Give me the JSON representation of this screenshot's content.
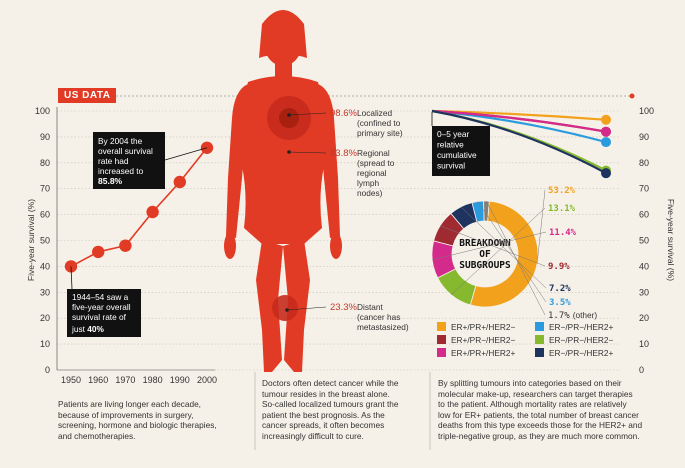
{
  "section_label": "US DATA",
  "colors": {
    "accent": "#e23b25",
    "dark": "#111111",
    "grid": "#c8c2b8"
  },
  "left_axis": {
    "ylabel": "Five-year survival (%)",
    "ticks": [
      "0",
      "10",
      "20",
      "30",
      "40",
      "50",
      "60",
      "70",
      "80",
      "90",
      "100"
    ]
  },
  "right_axis": {
    "ylabel": "Five-year survival (%)",
    "ticks": [
      "0",
      "10",
      "20",
      "30",
      "40",
      "50",
      "60",
      "70",
      "80",
      "90",
      "100"
    ]
  },
  "annotations": {
    "top_lines": [
      "By 2004 the",
      "overall survival",
      "rate had",
      "increased to"
    ],
    "top_value": "85.8%",
    "bottom_lines": [
      "1944–54 saw a",
      "five-year overall",
      "survival rate of"
    ],
    "bottom_prefix": "just ",
    "bottom_value": "40%"
  },
  "body_stages": [
    {
      "value": "98.6%",
      "lines": [
        "Localized",
        "(confined to",
        "primary site)"
      ]
    },
    {
      "value": "83.8%",
      "lines": [
        "Regional",
        "(spread to",
        "regional",
        "lymph",
        "nodes)"
      ]
    },
    {
      "value": "23.3%",
      "lines": [
        "Distant",
        "(cancer has",
        "metastasized)"
      ]
    }
  ],
  "survival_label": [
    "0–5 year",
    "relative",
    "cumulative",
    "survival"
  ],
  "donut_center": [
    "BREAKDOWN",
    "OF",
    "SUBGROUPS"
  ],
  "captions": {
    "left": [
      "Patients are living longer each decade,",
      "because of improvements in surgery,",
      "screening, hormone and biologic therapies,",
      "and chemotherapies."
    ],
    "middle": [
      "Doctors often detect cancer while the",
      "tumour resides in the breast alone.",
      "So-called localized tumours grant the",
      "patient the best prognosis. As the",
      "cancer spreads, it often becomes",
      "increasingly difficult to cure."
    ],
    "right": [
      "By splitting tumours into categories based on their",
      "molecular make-up, researchers can target therapies",
      "to the patient. Although mortality rates are relatively",
      "low for ER+ patients, the total number of breast cancer",
      "deaths from this type exceeds those for the HER2+ and",
      "triple-negative group, as they are much more common."
    ]
  },
  "chart_data": [
    {
      "type": "line",
      "x": [
        1950,
        1960,
        1970,
        1980,
        1990,
        2000
      ],
      "y": [
        40,
        45.6,
        48,
        61,
        72.6,
        85.8
      ],
      "xlabel": "",
      "ylabel": "Five-year survival (%)",
      "ylim": [
        0,
        100
      ],
      "grid": true,
      "color": "#e23b25"
    },
    {
      "type": "line",
      "series": [
        {
          "name": "ER+/PR+/HER2−",
          "color": "#f2a11c",
          "values": [
            100,
            96.6
          ]
        },
        {
          "name": "ER−/PR−/HER2+",
          "color": "#2b9be0",
          "values": [
            100,
            88
          ]
        },
        {
          "name": "ER+/PR−/HER2−",
          "color": "#a02a32",
          "values": [
            100,
            92
          ]
        },
        {
          "name": "ER+/PR+/HER2+",
          "color": "#d42a8c",
          "values": [
            100,
            92
          ]
        },
        {
          "name": "ER−/PR−/HER2−",
          "color": "#86b92d",
          "values": [
            100,
            77
          ]
        },
        {
          "name": "ER−/PR−/HER2+",
          "color": "#1e3360",
          "values": [
            100,
            76
          ]
        }
      ],
      "ylim": [
        0,
        100
      ]
    },
    {
      "type": "pie",
      "labels": [
        "ER+/PR+/HER2−",
        "ER−/PR−/HER2−",
        "ER+/PR+/HER2+",
        "ER+/PR−/HER2−",
        "ER−/PR−/HER2+",
        "ER−/PR−/HER2+",
        "other"
      ],
      "values": [
        53.2,
        13.1,
        11.4,
        9.9,
        7.2,
        3.5,
        1.7
      ],
      "value_labels": [
        "53.2%",
        "13.1%",
        "11.4%",
        "9.9%",
        "7.2%",
        "3.5%",
        "1.7% (other)"
      ],
      "colors": [
        "#f2a11c",
        "#86b92d",
        "#d42a8c",
        "#a02a32",
        "#1e3360",
        "#2b9be0",
        "#8a7f74"
      ]
    }
  ],
  "legend": [
    {
      "label": "ER+/PR+/HER2−",
      "color": "#f2a11c"
    },
    {
      "label": "ER−/PR−/HER2+",
      "color": "#2b9be0"
    },
    {
      "label": "ER+/PR−/HER2−",
      "color": "#a02a32"
    },
    {
      "label": "ER−/PR−/HER2−",
      "color": "#86b92d"
    },
    {
      "label": "ER+/PR+/HER2+",
      "color": "#d42a8c"
    },
    {
      "label": "ER−/PR−/HER2+",
      "color": "#1e3360"
    }
  ]
}
